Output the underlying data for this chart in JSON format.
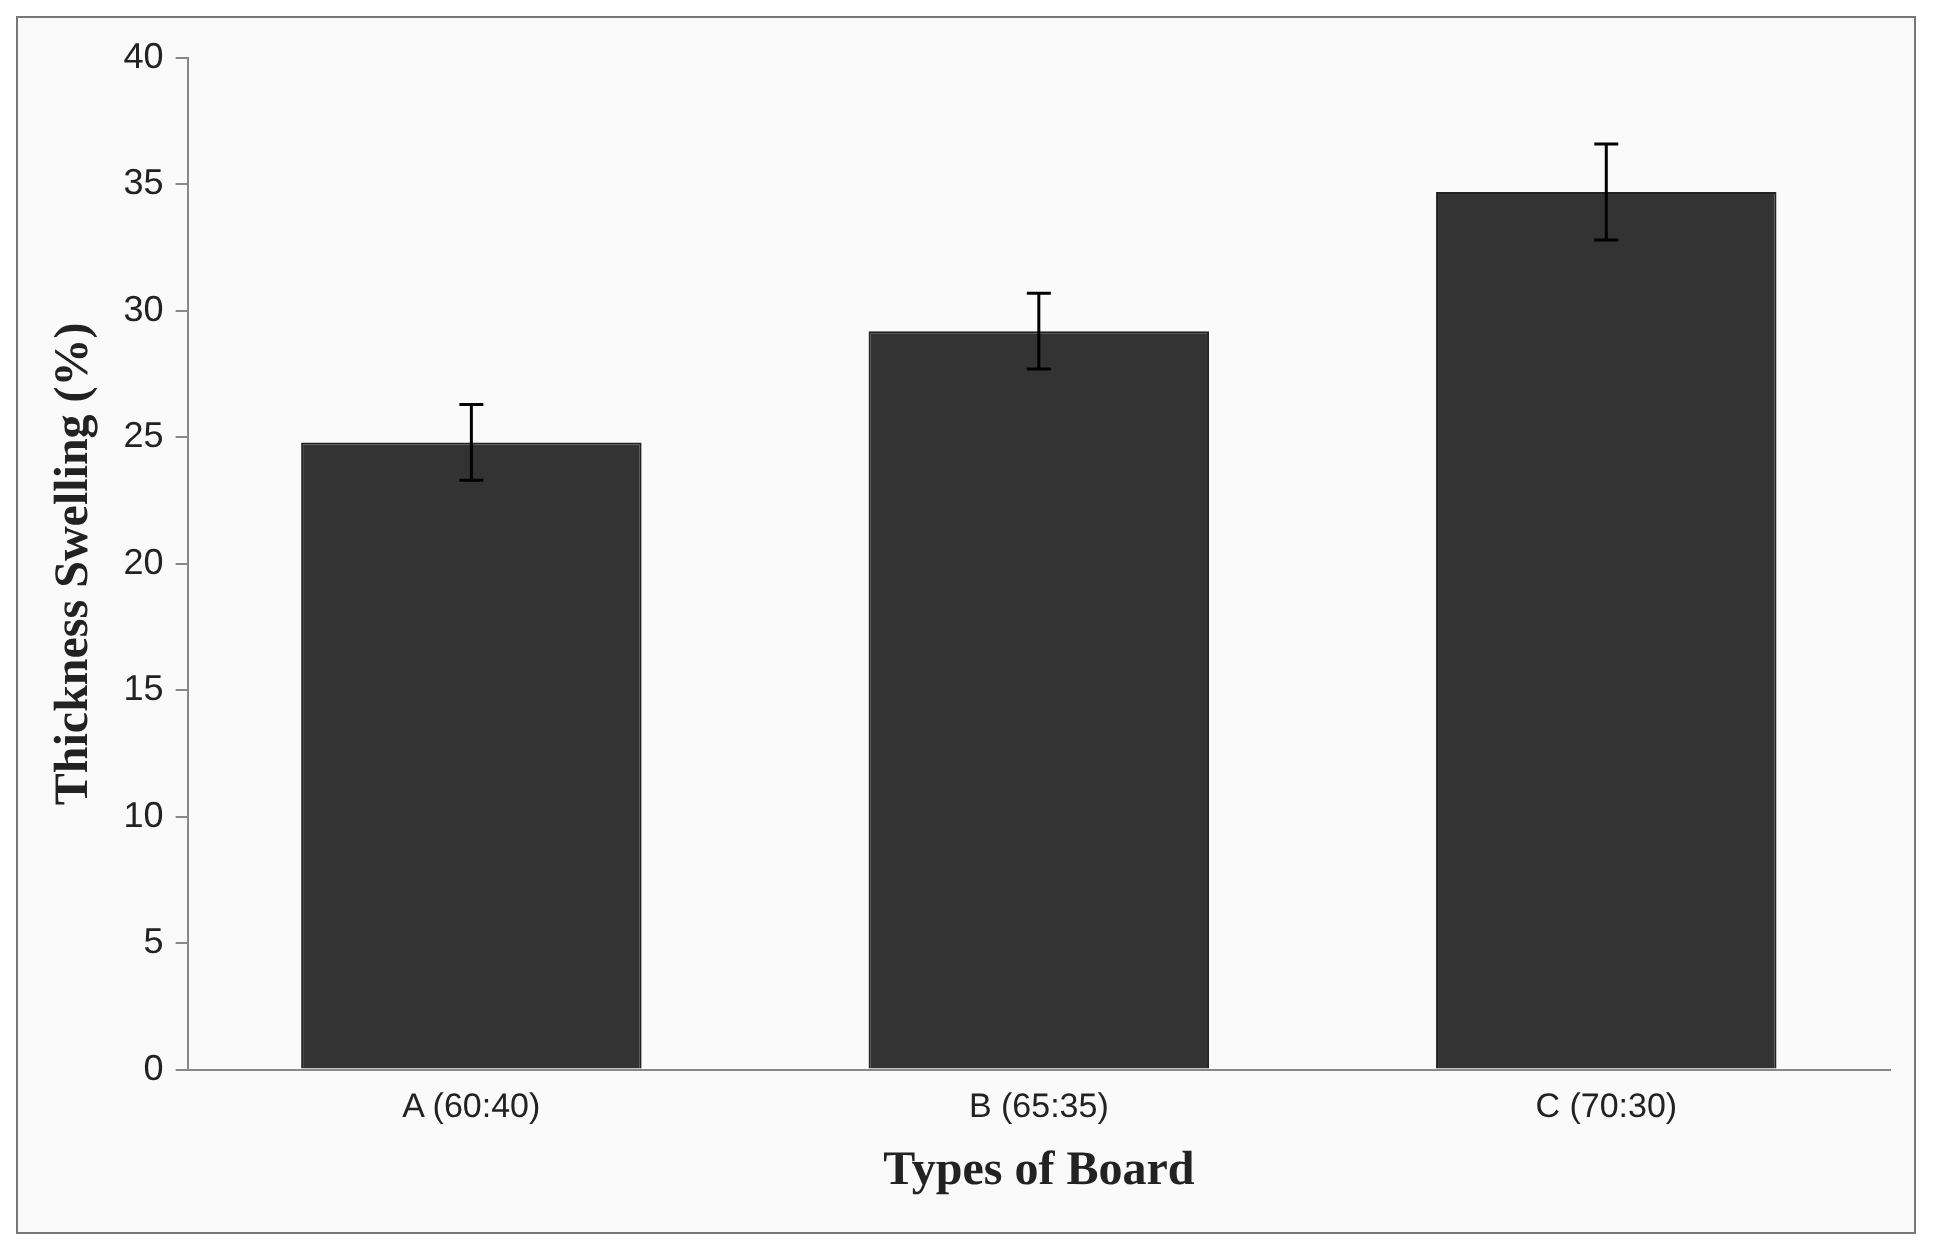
{
  "chart_data": {
    "type": "bar",
    "xlabel": "Types of Board",
    "ylabel": "Thickness Swelling (%)",
    "categories": [
      "A (60:40)",
      "B (65:35)",
      "C (70:30)"
    ],
    "values": [
      24.8,
      29.2,
      34.7
    ],
    "errors": [
      1.5,
      1.5,
      1.9
    ],
    "color": "#333333",
    "ylim": [
      0,
      40
    ],
    "yticks": [
      0,
      5,
      10,
      15,
      20,
      25,
      30,
      35,
      40
    ],
    "grid": false,
    "legend": false
  }
}
